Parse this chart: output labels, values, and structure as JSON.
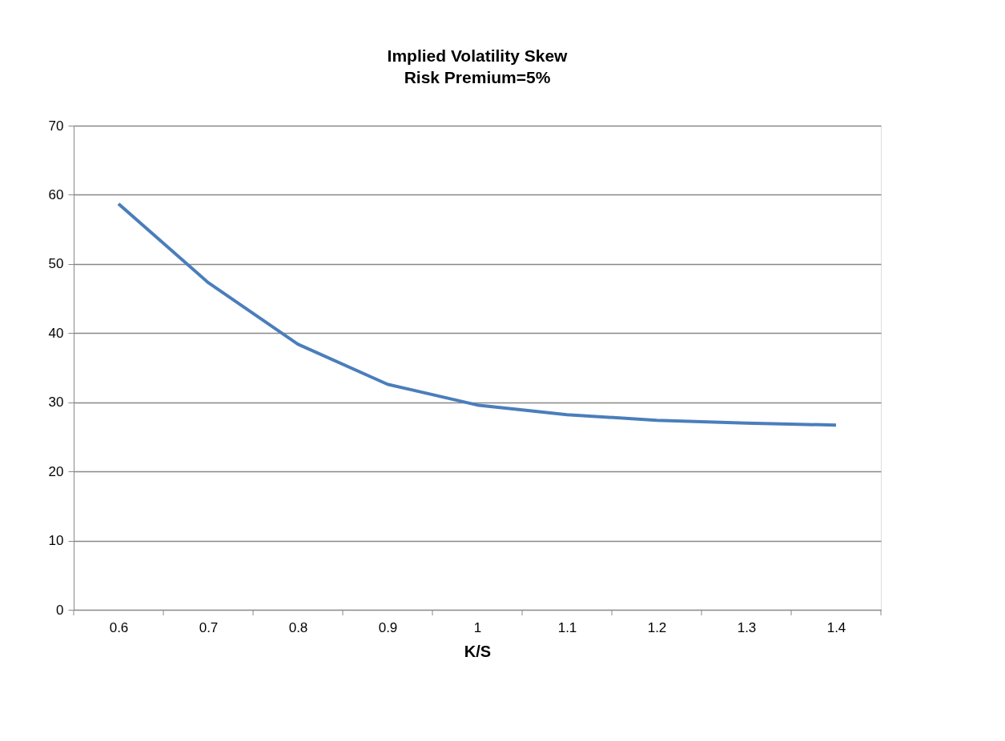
{
  "chart_data": {
    "type": "line",
    "title": "Implied Volatility Skew",
    "subtitle": "Risk Premium=5%",
    "xlabel": "K/S",
    "categories": [
      "0.6",
      "0.7",
      "0.8",
      "0.9",
      "1",
      "1.1",
      "1.2",
      "1.3",
      "1.4"
    ],
    "series": [
      {
        "color": "#4a7ebb",
        "values": [
          58.7,
          47.3,
          38.4,
          32.6,
          29.6,
          28.2,
          27.4,
          27.0,
          26.7
        ]
      }
    ],
    "ylim": [
      0,
      70
    ],
    "yticks": [
      0,
      10,
      20,
      30,
      40,
      50,
      60,
      70
    ],
    "grid": "y",
    "legend": false,
    "marker": "none",
    "line_style": "solid"
  }
}
